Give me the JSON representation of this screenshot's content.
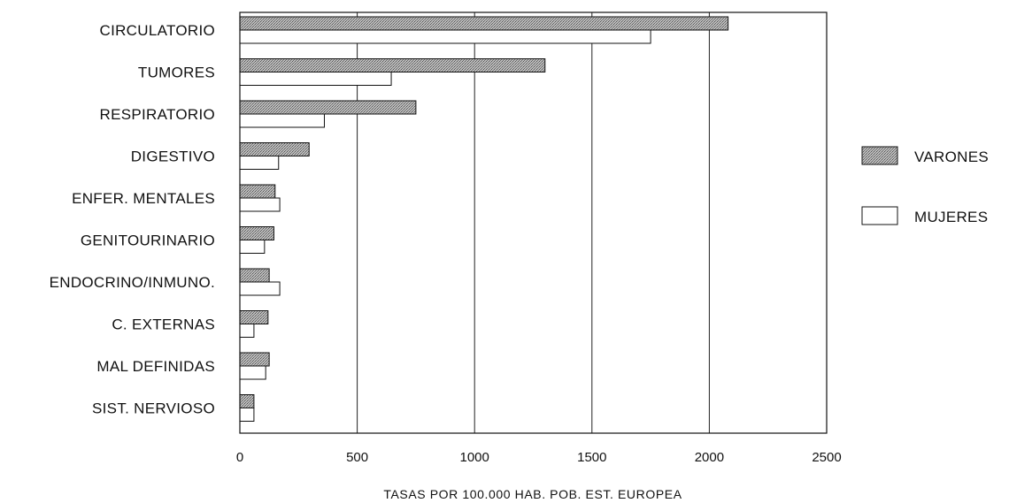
{
  "chart_data": {
    "type": "bar",
    "orientation": "horizontal",
    "title": "",
    "xlabel": "TASAS POR 100.000 HAB. POB. EST. EUROPEA",
    "ylabel": "",
    "xlim": [
      0,
      2500
    ],
    "xticks": [
      0,
      500,
      1000,
      1500,
      2000,
      2500
    ],
    "xtick_labels": [
      "0",
      "500",
      "1000",
      "1500",
      "2000",
      "2500"
    ],
    "grid": "vertical",
    "legend_position": "right",
    "categories": [
      "CIRCULATORIO",
      "TUMORES",
      "RESPIRATORIO",
      "DIGESTIVO",
      "ENFER. MENTALES",
      "GENITOURINARIO",
      "ENDOCRINO/INMUNO.",
      "C. EXTERNAS",
      "MAL DEFINIDAS",
      "SIST. NERVIOSO"
    ],
    "series": [
      {
        "name": "VARONES",
        "color": "#a9a9a9",
        "pattern": "stippled",
        "values": [
          2080,
          1300,
          750,
          295,
          150,
          145,
          125,
          120,
          125,
          60
        ]
      },
      {
        "name": "MUJERES",
        "color": "#ffffff",
        "pattern": "none",
        "values": [
          1750,
          645,
          360,
          165,
          170,
          105,
          170,
          60,
          110,
          60
        ]
      }
    ]
  }
}
